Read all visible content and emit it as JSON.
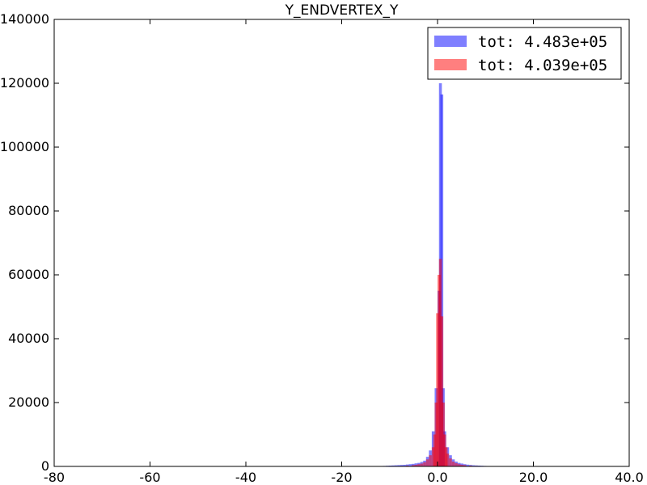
{
  "chart_data": {
    "type": "bar",
    "title": "Y_ENDVERTEX_Y",
    "xlabel": "",
    "ylabel": "",
    "xlim": [
      -80,
      40
    ],
    "ylim": [
      0,
      140000
    ],
    "x_ticks": [
      {
        "value": -80,
        "label": "-80"
      },
      {
        "value": -60,
        "label": "-60"
      },
      {
        "value": -40,
        "label": "-40"
      },
      {
        "value": -20,
        "label": "-20"
      },
      {
        "value": 0,
        "label": "0.0"
      },
      {
        "value": 20,
        "label": "20.0"
      },
      {
        "value": 40,
        "label": "40.0"
      }
    ],
    "y_ticks": [
      {
        "value": 0,
        "label": "0"
      },
      {
        "value": 20000,
        "label": "20000"
      },
      {
        "value": 40000,
        "label": "40000"
      },
      {
        "value": 60000,
        "label": "60000"
      },
      {
        "value": 80000,
        "label": "80000"
      },
      {
        "value": 100000,
        "label": "100000"
      },
      {
        "value": 120000,
        "label": "120000"
      },
      {
        "value": 140000,
        "label": "140000"
      }
    ],
    "bin_width": 0.6,
    "legend_position": "top-right",
    "series": [
      {
        "name": "tot: 4.483e+05",
        "color": "#0000ff",
        "opacity": 0.5,
        "bins": [
          [
            -11.4,
            150
          ],
          [
            -10.8,
            200
          ],
          [
            -10.2,
            250
          ],
          [
            -9.6,
            300
          ],
          [
            -9.0,
            350
          ],
          [
            -8.4,
            400
          ],
          [
            -7.8,
            450
          ],
          [
            -7.2,
            500
          ],
          [
            -6.6,
            600
          ],
          [
            -6.0,
            700
          ],
          [
            -5.4,
            800
          ],
          [
            -4.8,
            950
          ],
          [
            -4.2,
            1100
          ],
          [
            -3.6,
            1400
          ],
          [
            -3.0,
            1800
          ],
          [
            -2.4,
            3000
          ],
          [
            -1.8,
            5000
          ],
          [
            -1.2,
            11000
          ],
          [
            -0.6,
            24500
          ],
          [
            0.0,
            55000
          ],
          [
            0.3,
            120000
          ],
          [
            0.6,
            116500
          ],
          [
            0.9,
            24500
          ],
          [
            1.2,
            11000
          ],
          [
            1.8,
            6000
          ],
          [
            2.4,
            3500
          ],
          [
            3.0,
            2200
          ],
          [
            3.6,
            1500
          ],
          [
            4.2,
            1100
          ],
          [
            4.8,
            900
          ],
          [
            5.4,
            700
          ],
          [
            6.0,
            550
          ],
          [
            6.6,
            450
          ],
          [
            7.2,
            350
          ],
          [
            7.8,
            300
          ],
          [
            8.4,
            250
          ],
          [
            9.0,
            200
          ],
          [
            9.6,
            150
          ],
          [
            10.2,
            100
          ]
        ]
      },
      {
        "name": "tot: 4.039e+05",
        "color": "#ff0000",
        "opacity": 0.5,
        "bins": [
          [
            -9.0,
            100
          ],
          [
            -7.8,
            150
          ],
          [
            -6.6,
            250
          ],
          [
            -5.4,
            400
          ],
          [
            -4.8,
            500
          ],
          [
            -4.2,
            700
          ],
          [
            -3.6,
            900
          ],
          [
            -3.0,
            1300
          ],
          [
            -2.4,
            2200
          ],
          [
            -1.8,
            3500
          ],
          [
            -1.2,
            6000
          ],
          [
            -0.9,
            10000
          ],
          [
            -0.6,
            20000
          ],
          [
            -0.3,
            48000
          ],
          [
            0.0,
            60000
          ],
          [
            0.3,
            65000
          ],
          [
            0.6,
            47000
          ],
          [
            0.9,
            20000
          ],
          [
            1.2,
            10000
          ],
          [
            1.5,
            6000
          ],
          [
            1.8,
            4000
          ],
          [
            2.4,
            2500
          ],
          [
            3.0,
            1500
          ],
          [
            3.6,
            1000
          ],
          [
            4.2,
            700
          ],
          [
            4.8,
            500
          ],
          [
            5.4,
            400
          ],
          [
            6.6,
            250
          ],
          [
            7.8,
            150
          ],
          [
            9.0,
            100
          ]
        ]
      }
    ]
  }
}
